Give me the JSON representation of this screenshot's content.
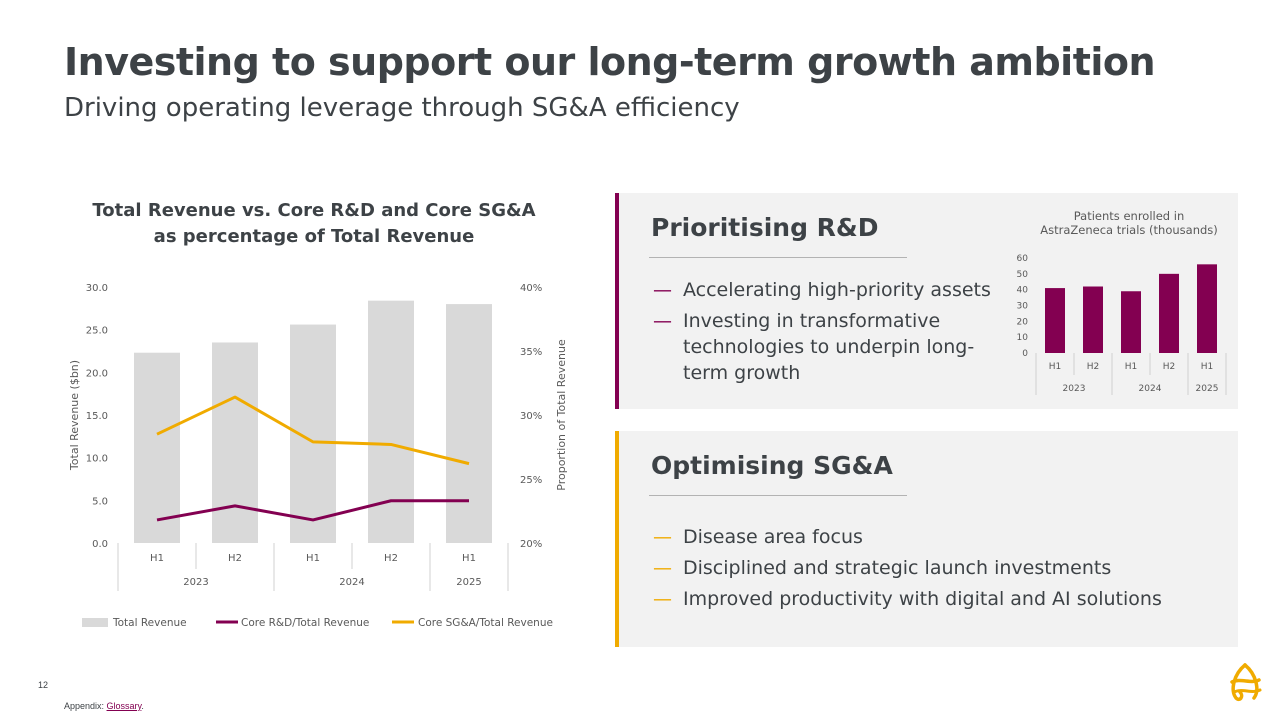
{
  "title": "Investing to support our long-term growth ambition",
  "subtitle": "Driving operating leverage through SG&A efficiency",
  "colors": {
    "purple": "#830051",
    "gold": "#f0ab00",
    "grey_bar": "#d9d9d9",
    "text": "#3d4246"
  },
  "chart_data": [
    {
      "type": "bar",
      "title": "Total Revenue vs. Core R&D and Core SG&A as percentage of Total Revenue",
      "title_lines": [
        "Total Revenue vs. Core R&D and Core SG&A",
        "as percentage of Total Revenue"
      ],
      "categories": [
        "H1",
        "H2",
        "H1",
        "H2",
        "H1"
      ],
      "category_groups": [
        {
          "label": "2023",
          "span": 2
        },
        {
          "label": "2024",
          "span": 2
        },
        {
          "label": "2025",
          "span": 1
        }
      ],
      "ylabel": "Total Revenue ($bn)",
      "ylim": [
        0,
        30
      ],
      "yticks": [
        "0.0",
        "5.0",
        "10.0",
        "15.0",
        "20.0",
        "25.0",
        "30.0"
      ],
      "y2label": "Proportion of Total Revenue",
      "y2lim": [
        20,
        40
      ],
      "y2ticks": [
        "20%",
        "25%",
        "30%",
        "35%",
        "40%"
      ],
      "series": [
        {
          "name": "Total Revenue",
          "type": "bar",
          "axis": "left",
          "color": "#d9d9d9",
          "values": [
            22.3,
            23.5,
            25.6,
            28.4,
            28.0
          ]
        },
        {
          "name": "Core R&D/Total Revenue",
          "type": "line",
          "axis": "right",
          "color": "#830051",
          "values": [
            21.8,
            22.9,
            21.8,
            23.3,
            23.3
          ]
        },
        {
          "name": "Core SG&A/Total Revenue",
          "type": "line",
          "axis": "right",
          "color": "#f0ab00",
          "values": [
            28.5,
            31.4,
            27.9,
            27.7,
            26.2
          ]
        }
      ],
      "legend": [
        "Total Revenue",
        "Core R&D/Total Revenue",
        "Core SG&A/Total Revenue"
      ]
    },
    {
      "type": "bar",
      "title": "Patients enrolled in AstraZeneca trials (thousands)",
      "title_lines": [
        "Patients enrolled in",
        "AstraZeneca trials (thousands)"
      ],
      "categories": [
        "H1",
        "H2",
        "H1",
        "H2",
        "H1"
      ],
      "category_groups": [
        {
          "label": "2023",
          "span": 2
        },
        {
          "label": "2024",
          "span": 2
        },
        {
          "label": "2025",
          "span": 1
        }
      ],
      "ylim": [
        0,
        60
      ],
      "yticks": [
        "0",
        "10",
        "20",
        "30",
        "40",
        "50",
        "60"
      ],
      "series": [
        {
          "name": "Patients enrolled",
          "color": "#830051",
          "values": [
            41,
            42,
            39,
            50,
            56
          ]
        }
      ]
    }
  ],
  "rd_panel": {
    "heading": "Prioritising R&D",
    "dash": "—",
    "bullets": [
      "Accelerating high-priority assets",
      "Investing in transformative technologies to underpin long-term growth"
    ]
  },
  "sga_panel": {
    "heading": "Optimising SG&A",
    "dash": "—",
    "bullets": [
      "Disease area focus",
      "Disciplined and strategic launch investments",
      "Improved productivity with digital and AI solutions"
    ]
  },
  "footer": {
    "page_number": "12",
    "appendix_prefix": "Appendix: ",
    "glossary_link": "Glossary",
    "suffix": "."
  }
}
